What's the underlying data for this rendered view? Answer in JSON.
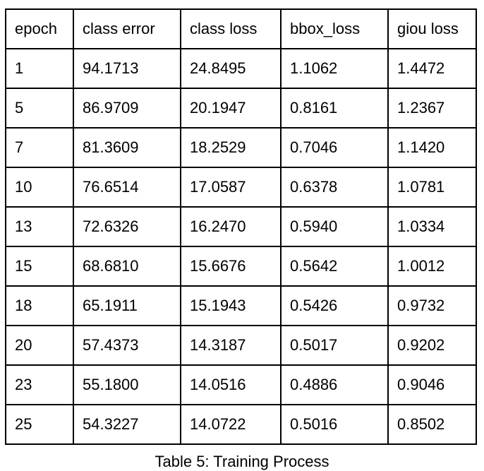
{
  "table": {
    "columns": [
      "epoch",
      "class error",
      "class loss",
      "bbox_loss",
      "giou loss"
    ],
    "rows": [
      [
        "1",
        "94.1713",
        "24.8495",
        "1.1062",
        "1.4472"
      ],
      [
        "5",
        "86.9709",
        "20.1947",
        "0.8161",
        "1.2367"
      ],
      [
        "7",
        "81.3609",
        "18.2529",
        "0.7046",
        "1.1420"
      ],
      [
        "10",
        "76.6514",
        "17.0587",
        "0.6378",
        "1.0781"
      ],
      [
        "13",
        "72.6326",
        "16.2470",
        "0.5940",
        "1.0334"
      ],
      [
        "15",
        "68.6810",
        "15.6676",
        "0.5642",
        "1.0012"
      ],
      [
        "18",
        "65.1911",
        "15.1943",
        "0.5426",
        "0.9732"
      ],
      [
        "20",
        "57.4373",
        "14.3187",
        "0.5017",
        "0.9202"
      ],
      [
        "23",
        "55.1800",
        "14.0516",
        "0.4886",
        "0.9046"
      ],
      [
        "25",
        "54.3227",
        "14.0722",
        "0.5016",
        "0.8502"
      ]
    ]
  },
  "caption": "Table 5: Training Process"
}
